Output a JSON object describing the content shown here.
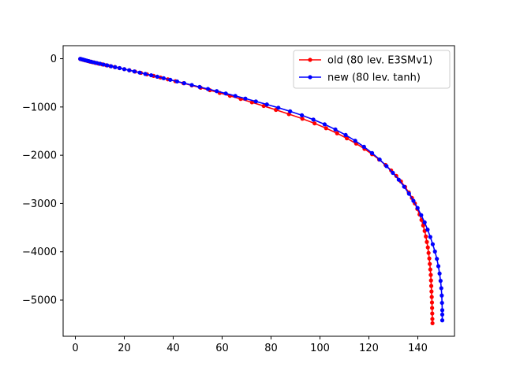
{
  "chart_data": {
    "type": "line",
    "title": "",
    "xlabel": "",
    "ylabel": "",
    "xlim": [
      -5,
      155
    ],
    "ylim": [
      -5750,
      270
    ],
    "xticks": [
      0,
      20,
      40,
      60,
      80,
      100,
      120,
      140
    ],
    "yticks": [
      0,
      -1000,
      -2000,
      -3000,
      -4000,
      -5000
    ],
    "grid": false,
    "legend_position": "upper right",
    "series": [
      {
        "name": "old (80 lev. E3SMv1)",
        "color": "#ff0000",
        "marker": "dot",
        "points": [
          [
            2,
            -5
          ],
          [
            2.6,
            -15
          ],
          [
            3.3,
            -25
          ],
          [
            4,
            -35
          ],
          [
            5,
            -47
          ],
          [
            6,
            -60
          ],
          [
            7,
            -73
          ],
          [
            8.2,
            -87
          ],
          [
            9.5,
            -102
          ],
          [
            11,
            -118
          ],
          [
            12.6,
            -135
          ],
          [
            14.3,
            -153
          ],
          [
            16.1,
            -173
          ],
          [
            18,
            -194
          ],
          [
            20,
            -216
          ],
          [
            22.1,
            -240
          ],
          [
            24.4,
            -266
          ],
          [
            26.8,
            -294
          ],
          [
            29.3,
            -324
          ],
          [
            32,
            -356
          ],
          [
            34.8,
            -390
          ],
          [
            37.8,
            -427
          ],
          [
            40.9,
            -466
          ],
          [
            44.2,
            -508
          ],
          [
            47.6,
            -553
          ],
          [
            51.2,
            -601
          ],
          [
            55,
            -653
          ],
          [
            59,
            -709
          ],
          [
            63.2,
            -769
          ],
          [
            67.6,
            -834
          ],
          [
            72.2,
            -904
          ],
          [
            77,
            -979
          ],
          [
            82,
            -1060
          ],
          [
            87.3,
            -1148
          ],
          [
            92.8,
            -1243
          ],
          [
            97.8,
            -1340
          ],
          [
            102.5,
            -1440
          ],
          [
            107,
            -1545
          ],
          [
            111,
            -1650
          ],
          [
            114.8,
            -1758
          ],
          [
            118.2,
            -1868
          ],
          [
            121.3,
            -1978
          ],
          [
            124.2,
            -2090
          ],
          [
            126.8,
            -2202
          ],
          [
            129.1,
            -2315
          ],
          [
            131.2,
            -2428
          ],
          [
            133.1,
            -2542
          ],
          [
            134.8,
            -2656
          ],
          [
            136.3,
            -2770
          ],
          [
            137.6,
            -2884
          ],
          [
            138.8,
            -2998
          ],
          [
            139.8,
            -3112
          ],
          [
            140.7,
            -3226
          ],
          [
            141.5,
            -3340
          ],
          [
            142.2,
            -3454
          ],
          [
            142.8,
            -3568
          ],
          [
            143.3,
            -3682
          ],
          [
            143.7,
            -3796
          ],
          [
            144.1,
            -3910
          ],
          [
            144.4,
            -4024
          ],
          [
            144.7,
            -4138
          ],
          [
            144.9,
            -4252
          ],
          [
            145.1,
            -4366
          ],
          [
            145.3,
            -4480
          ],
          [
            145.4,
            -4594
          ],
          [
            145.5,
            -4708
          ],
          [
            145.6,
            -4822
          ],
          [
            145.7,
            -4936
          ],
          [
            145.8,
            -5050
          ],
          [
            145.85,
            -5164
          ],
          [
            145.9,
            -5278
          ],
          [
            145.95,
            -5392
          ],
          [
            146,
            -5480
          ]
        ]
      },
      {
        "name": "new (80 lev. tanh)",
        "color": "#0000ff",
        "marker": "dot",
        "points": [
          [
            2,
            -3
          ],
          [
            2.5,
            -10
          ],
          [
            3.1,
            -18
          ],
          [
            3.8,
            -28
          ],
          [
            4.6,
            -38
          ],
          [
            5.5,
            -50
          ],
          [
            6.5,
            -62
          ],
          [
            7.6,
            -76
          ],
          [
            8.8,
            -90
          ],
          [
            10.1,
            -105
          ],
          [
            11.5,
            -121
          ],
          [
            13,
            -138
          ],
          [
            14.6,
            -156
          ],
          [
            16.3,
            -175
          ],
          [
            18.1,
            -195
          ],
          [
            20,
            -216
          ],
          [
            22,
            -239
          ],
          [
            24.1,
            -263
          ],
          [
            26.3,
            -288
          ],
          [
            28.6,
            -315
          ],
          [
            31,
            -343
          ],
          [
            33.5,
            -373
          ],
          [
            36.1,
            -404
          ],
          [
            38.8,
            -437
          ],
          [
            41.6,
            -471
          ],
          [
            44.5,
            -507
          ],
          [
            47.6,
            -545
          ],
          [
            50.8,
            -585
          ],
          [
            54.2,
            -627
          ],
          [
            57.8,
            -672
          ],
          [
            61.5,
            -720
          ],
          [
            65.4,
            -771
          ],
          [
            69.5,
            -826
          ],
          [
            73.8,
            -885
          ],
          [
            78.3,
            -948
          ],
          [
            83,
            -1016
          ],
          [
            87.8,
            -1090
          ],
          [
            92.6,
            -1172
          ],
          [
            97.3,
            -1262
          ],
          [
            101.9,
            -1360
          ],
          [
            106.3,
            -1466
          ],
          [
            110.5,
            -1580
          ],
          [
            114.4,
            -1700
          ],
          [
            118,
            -1825
          ],
          [
            121.3,
            -1955
          ],
          [
            124.4,
            -2088
          ],
          [
            127.2,
            -2225
          ],
          [
            129.8,
            -2365
          ],
          [
            132.2,
            -2507
          ],
          [
            134.4,
            -2651
          ],
          [
            136.4,
            -2797
          ],
          [
            138.2,
            -2944
          ],
          [
            139.9,
            -3092
          ],
          [
            141.4,
            -3241
          ],
          [
            142.8,
            -3391
          ],
          [
            144,
            -3541
          ],
          [
            145.1,
            -3692
          ],
          [
            146.1,
            -3843
          ],
          [
            147,
            -3994
          ],
          [
            147.8,
            -4146
          ],
          [
            148.4,
            -4298
          ],
          [
            148.9,
            -4450
          ],
          [
            149.3,
            -4602
          ],
          [
            149.6,
            -4754
          ],
          [
            149.8,
            -4906
          ],
          [
            149.9,
            -5058
          ],
          [
            150,
            -5210
          ],
          [
            150,
            -5300
          ],
          [
            150,
            -5420
          ]
        ]
      }
    ]
  }
}
